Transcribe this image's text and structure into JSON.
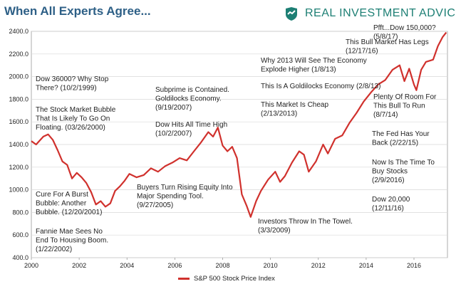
{
  "header": {
    "title": "When All Experts Agree...",
    "brand_name": "REAL INVESTMENT ADVICE",
    "brand_logo": "bull-head-logo-icon"
  },
  "colors": {
    "line": "#d0312d",
    "title": "#2d5f86",
    "brand": "#1d7f74",
    "grid": "#d9d9d9",
    "axis": "#999999"
  },
  "chart_data": {
    "type": "line",
    "title": "When All Experts Agree...",
    "xlabel": "",
    "ylabel": "",
    "xlim": [
      2000,
      2017.4
    ],
    "ylim": [
      400,
      2400
    ],
    "y_ticks": [
      400,
      600,
      800,
      1000,
      1200,
      1400,
      1600,
      1800,
      2000,
      2200,
      2400
    ],
    "y_tick_labels": [
      "400.0",
      "600.0",
      "800.0",
      "1000.0",
      "1200.0",
      "1400.0",
      "1600.0",
      "1800.0",
      "2000.0",
      "2200.0",
      "2400.0"
    ],
    "x_ticks": [
      2000,
      2002,
      2004,
      2006,
      2008,
      2010,
      2012,
      2014,
      2016
    ],
    "x_tick_labels": [
      "2000",
      "2002",
      "2004",
      "2006",
      "2008",
      "2010",
      "2012",
      "2014",
      "2016"
    ],
    "grid": true,
    "legend_position": "bottom",
    "series": [
      {
        "name": "S&P 500 Stock Price Index",
        "x": [
          2000.0,
          2000.2,
          2000.5,
          2000.7,
          2000.9,
          2001.1,
          2001.3,
          2001.5,
          2001.7,
          2001.9,
          2002.1,
          2002.3,
          2002.5,
          2002.7,
          2002.9,
          2003.1,
          2003.3,
          2003.5,
          2003.7,
          2003.9,
          2004.1,
          2004.4,
          2004.7,
          2005.0,
          2005.3,
          2005.6,
          2005.9,
          2006.2,
          2006.5,
          2006.8,
          2007.1,
          2007.4,
          2007.6,
          2007.8,
          2008.0,
          2008.2,
          2008.4,
          2008.6,
          2008.8,
          2009.0,
          2009.17,
          2009.4,
          2009.6,
          2009.9,
          2010.2,
          2010.4,
          2010.6,
          2010.9,
          2011.2,
          2011.4,
          2011.6,
          2011.9,
          2012.2,
          2012.4,
          2012.7,
          2013.0,
          2013.3,
          2013.6,
          2013.9,
          2014.2,
          2014.5,
          2014.8,
          2015.1,
          2015.4,
          2015.6,
          2015.8,
          2016.0,
          2016.1,
          2016.3,
          2016.5,
          2016.8,
          2017.0,
          2017.2,
          2017.35
        ],
        "values": [
          1430,
          1400,
          1470,
          1490,
          1440,
          1350,
          1250,
          1220,
          1100,
          1150,
          1110,
          1060,
          980,
          870,
          900,
          850,
          880,
          990,
          1030,
          1080,
          1140,
          1110,
          1130,
          1190,
          1160,
          1210,
          1240,
          1280,
          1260,
          1340,
          1420,
          1510,
          1470,
          1550,
          1390,
          1340,
          1380,
          1280,
          960,
          860,
          760,
          900,
          990,
          1090,
          1160,
          1070,
          1120,
          1240,
          1340,
          1310,
          1160,
          1250,
          1400,
          1320,
          1450,
          1480,
          1590,
          1680,
          1780,
          1860,
          1930,
          1970,
          2060,
          2100,
          1960,
          2070,
          1930,
          1880,
          2060,
          2130,
          2150,
          2270,
          2350,
          2390
        ]
      }
    ],
    "annotations": [
      {
        "lines": [
          "Dow 36000? Why Stop",
          "There?  (10/2/1999)"
        ]
      },
      {
        "lines": [
          "The Stock Market Bubble",
          "That Is Likely To Go On",
          "Floating. (03/26/2000)"
        ]
      },
      {
        "lines": [
          "Cure For A Burst",
          "Bubble: Another",
          "Bubble.  (12/20/2001)"
        ]
      },
      {
        "lines": [
          "Fannie Mae Sees No",
          "End To Housing Boom.",
          "(1/22/2002)"
        ]
      },
      {
        "lines": [
          "Subprime is Contained.",
          "Goldilocks Economy.",
          "(9/19/2007)"
        ]
      },
      {
        "lines": [
          "Dow Hits All Time High",
          "(10/2/2007)"
        ]
      },
      {
        "lines": [
          "Buyers Turn Rising Equity Into",
          "Major Spending Tool.",
          "(9/27/2005)"
        ]
      },
      {
        "lines": [
          "Investors Throw In The Towel.",
          "(3/3/2009)"
        ]
      },
      {
        "lines": [
          "Why 2013 Will See The Economy",
          "Explode Higher (1/8/13)"
        ]
      },
      {
        "lines": [
          "This Is A Goldilocks Economy (2/8/13)"
        ]
      },
      {
        "lines": [
          "This Market Is Cheap",
          "(2/13/2013)"
        ]
      },
      {
        "lines": [
          "This Bull Market Has Legs",
          "(12/17/16)"
        ]
      },
      {
        "lines": [
          "Pfft...Dow 150,000?",
          "(5/8/17)"
        ]
      },
      {
        "lines": [
          "Plenty Of Room For",
          "This Bull To Run",
          "(8/7/14)"
        ]
      },
      {
        "lines": [
          "The Fed Has Your",
          "Back (2/22/15)"
        ]
      },
      {
        "lines": [
          "Now Is The Time To",
          "Buy Stocks",
          "(2/9/2016)"
        ]
      },
      {
        "lines": [
          "Dow 20,000",
          "(12/11/16)"
        ]
      }
    ]
  }
}
